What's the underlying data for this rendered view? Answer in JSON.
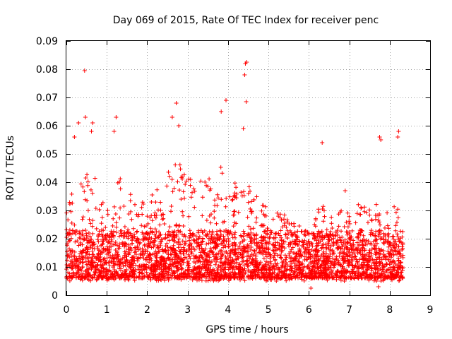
{
  "chart_data": {
    "type": "scatter",
    "title": "Day 069 of 2015, Rate Of TEC Index for receiver penc",
    "xlabel": "GPS time / hours",
    "ylabel": "ROTI / TECUs",
    "xlim": [
      0,
      9
    ],
    "ylim": [
      0,
      0.09
    ],
    "xticks": [
      "0",
      "1",
      "2",
      "3",
      "4",
      "5",
      "6",
      "7",
      "8",
      "9"
    ],
    "yticks": [
      "0",
      "0.01",
      "0.02",
      "0.03",
      "0.04",
      "0.05",
      "0.06",
      "0.07",
      "0.08",
      "0.09"
    ],
    "grid": true,
    "marker": "plus",
    "color": "#ff0000",
    "series": [
      {
        "name": "ROTI",
        "x_range": [
          0,
          8.33
        ],
        "typical_range": [
          0.005,
          0.03
        ],
        "notable_points": [
          {
            "x": 0.45,
            "y": 0.0795
          },
          {
            "x": 0.47,
            "y": 0.063
          },
          {
            "x": 0.3,
            "y": 0.061
          },
          {
            "x": 0.2,
            "y": 0.056
          },
          {
            "x": 0.65,
            "y": 0.061
          },
          {
            "x": 0.62,
            "y": 0.058
          },
          {
            "x": 1.23,
            "y": 0.063
          },
          {
            "x": 1.18,
            "y": 0.058
          },
          {
            "x": 2.72,
            "y": 0.068
          },
          {
            "x": 2.62,
            "y": 0.063
          },
          {
            "x": 2.78,
            "y": 0.06
          },
          {
            "x": 3.95,
            "y": 0.069
          },
          {
            "x": 3.83,
            "y": 0.065
          },
          {
            "x": 4.43,
            "y": 0.082
          },
          {
            "x": 4.46,
            "y": 0.0825
          },
          {
            "x": 4.41,
            "y": 0.078
          },
          {
            "x": 4.45,
            "y": 0.0685
          },
          {
            "x": 4.38,
            "y": 0.059
          },
          {
            "x": 6.33,
            "y": 0.054
          },
          {
            "x": 6.05,
            "y": 0.0025
          },
          {
            "x": 7.75,
            "y": 0.056
          },
          {
            "x": 7.78,
            "y": 0.055
          },
          {
            "x": 8.22,
            "y": 0.058
          },
          {
            "x": 8.2,
            "y": 0.056
          },
          {
            "x": 6.9,
            "y": 0.037
          },
          {
            "x": 7.72,
            "y": 0.003
          }
        ],
        "envelope": [
          {
            "x": 0.0,
            "hi": 0.033
          },
          {
            "x": 0.3,
            "hi": 0.042
          },
          {
            "x": 0.6,
            "hi": 0.046
          },
          {
            "x": 1.0,
            "hi": 0.03
          },
          {
            "x": 1.2,
            "hi": 0.046
          },
          {
            "x": 1.5,
            "hi": 0.036
          },
          {
            "x": 2.0,
            "hi": 0.036
          },
          {
            "x": 2.3,
            "hi": 0.04
          },
          {
            "x": 2.7,
            "hi": 0.05
          },
          {
            "x": 3.0,
            "hi": 0.042
          },
          {
            "x": 3.3,
            "hi": 0.04
          },
          {
            "x": 3.8,
            "hi": 0.048
          },
          {
            "x": 4.0,
            "hi": 0.04
          },
          {
            "x": 4.3,
            "hi": 0.04
          },
          {
            "x": 4.6,
            "hi": 0.04
          },
          {
            "x": 5.0,
            "hi": 0.03
          },
          {
            "x": 5.5,
            "hi": 0.028
          },
          {
            "x": 6.0,
            "hi": 0.024
          },
          {
            "x": 6.3,
            "hi": 0.034
          },
          {
            "x": 6.6,
            "hi": 0.028
          },
          {
            "x": 7.0,
            "hi": 0.032
          },
          {
            "x": 7.5,
            "hi": 0.034
          },
          {
            "x": 8.0,
            "hi": 0.032
          },
          {
            "x": 8.33,
            "hi": 0.03
          }
        ]
      }
    ]
  }
}
